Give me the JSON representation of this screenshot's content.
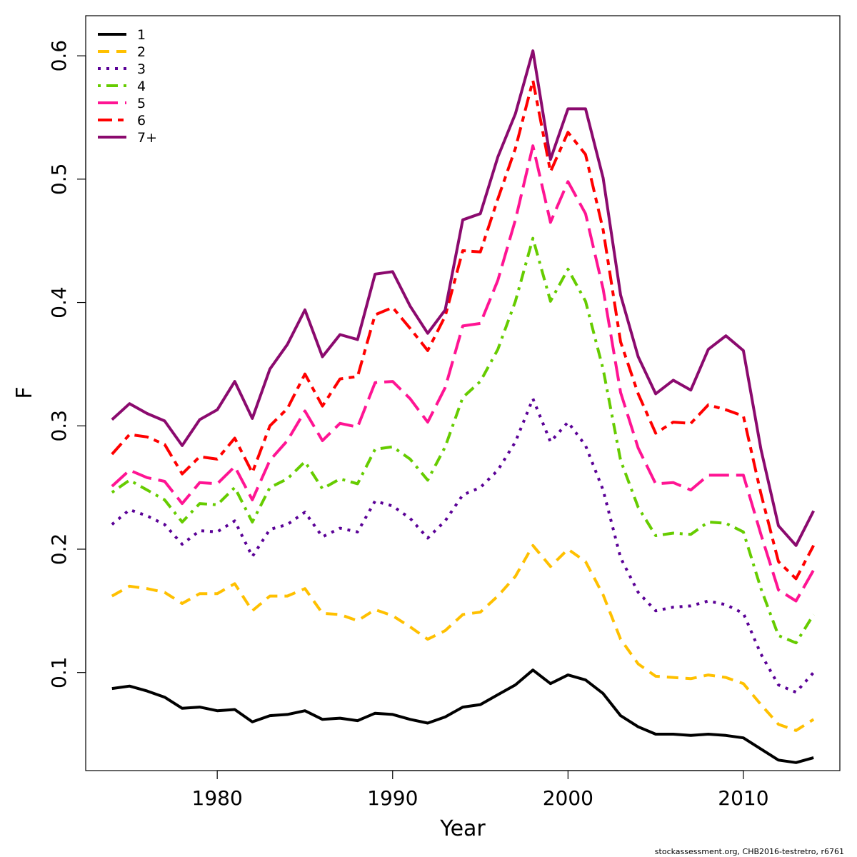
{
  "chart_data": {
    "type": "line",
    "xlabel": "Year",
    "ylabel": "F",
    "xlim": [
      1972.5,
      2015.5
    ],
    "ylim": [
      0.0205,
      0.6325
    ],
    "xticks": [
      1980,
      1990,
      2000,
      2010
    ],
    "yticks": [
      0.1,
      0.2,
      0.3,
      0.4,
      0.5,
      0.6
    ],
    "grid": false,
    "legend_position": "top-left",
    "x": [
      1974,
      1975,
      1976,
      1977,
      1978,
      1979,
      1980,
      1981,
      1982,
      1983,
      1984,
      1985,
      1986,
      1987,
      1988,
      1989,
      1990,
      1991,
      1992,
      1993,
      1994,
      1995,
      1996,
      1997,
      1998,
      1999,
      2000,
      2001,
      2002,
      2003,
      2004,
      2005,
      2006,
      2007,
      2008,
      2009,
      2010,
      2011,
      2012,
      2013,
      2014
    ],
    "series": [
      {
        "name": "1",
        "color": "#000000",
        "dash": "solid",
        "values": [
          0.087,
          0.089,
          0.085,
          0.08,
          0.071,
          0.072,
          0.069,
          0.07,
          0.06,
          0.065,
          0.066,
          0.069,
          0.062,
          0.063,
          0.061,
          0.067,
          0.066,
          0.062,
          0.059,
          0.064,
          0.072,
          0.074,
          0.082,
          0.09,
          0.102,
          0.091,
          0.098,
          0.094,
          0.083,
          0.065,
          0.056,
          0.05,
          0.05,
          0.049,
          0.05,
          0.049,
          0.047,
          0.038,
          0.029,
          0.027,
          0.031
        ]
      },
      {
        "name": "2",
        "color": "#FFC000",
        "dash": "dashed",
        "values": [
          0.162,
          0.17,
          0.168,
          0.165,
          0.156,
          0.164,
          0.164,
          0.172,
          0.15,
          0.162,
          0.162,
          0.168,
          0.148,
          0.147,
          0.142,
          0.151,
          0.146,
          0.137,
          0.127,
          0.134,
          0.147,
          0.149,
          0.162,
          0.178,
          0.203,
          0.186,
          0.2,
          0.19,
          0.163,
          0.127,
          0.107,
          0.097,
          0.096,
          0.095,
          0.098,
          0.096,
          0.091,
          0.074,
          0.058,
          0.053,
          0.062
        ]
      },
      {
        "name": "3",
        "color": "#5A0096",
        "dash": "dotted",
        "values": [
          0.22,
          0.232,
          0.227,
          0.22,
          0.204,
          0.215,
          0.214,
          0.223,
          0.194,
          0.216,
          0.22,
          0.23,
          0.21,
          0.217,
          0.214,
          0.239,
          0.235,
          0.225,
          0.209,
          0.223,
          0.244,
          0.25,
          0.264,
          0.287,
          0.322,
          0.287,
          0.303,
          0.284,
          0.248,
          0.193,
          0.165,
          0.15,
          0.153,
          0.154,
          0.158,
          0.155,
          0.148,
          0.115,
          0.09,
          0.084,
          0.1
        ]
      },
      {
        "name": "4",
        "color": "#66CC00",
        "dash": "dotdash",
        "values": [
          0.246,
          0.256,
          0.248,
          0.24,
          0.222,
          0.237,
          0.236,
          0.25,
          0.222,
          0.25,
          0.257,
          0.271,
          0.249,
          0.257,
          0.253,
          0.281,
          0.283,
          0.273,
          0.256,
          0.283,
          0.323,
          0.336,
          0.362,
          0.401,
          0.452,
          0.401,
          0.427,
          0.401,
          0.346,
          0.272,
          0.234,
          0.211,
          0.213,
          0.212,
          0.222,
          0.221,
          0.214,
          0.168,
          0.13,
          0.124,
          0.147
        ]
      },
      {
        "name": "5",
        "color": "#FF1493",
        "dash": "longdash",
        "values": [
          0.251,
          0.264,
          0.258,
          0.255,
          0.237,
          0.254,
          0.253,
          0.267,
          0.24,
          0.272,
          0.288,
          0.312,
          0.288,
          0.302,
          0.299,
          0.335,
          0.336,
          0.322,
          0.303,
          0.331,
          0.381,
          0.383,
          0.418,
          0.467,
          0.527,
          0.465,
          0.498,
          0.472,
          0.411,
          0.327,
          0.282,
          0.253,
          0.254,
          0.248,
          0.26,
          0.26,
          0.26,
          0.212,
          0.167,
          0.158,
          0.183
        ]
      },
      {
        "name": "6",
        "color": "#FF0000",
        "dash": "twodash",
        "values": [
          0.277,
          0.293,
          0.291,
          0.285,
          0.261,
          0.275,
          0.273,
          0.29,
          0.262,
          0.3,
          0.314,
          0.342,
          0.316,
          0.338,
          0.34,
          0.39,
          0.396,
          0.379,
          0.361,
          0.389,
          0.442,
          0.441,
          0.484,
          0.525,
          0.58,
          0.506,
          0.538,
          0.52,
          0.459,
          0.368,
          0.326,
          0.294,
          0.303,
          0.302,
          0.317,
          0.313,
          0.308,
          0.245,
          0.19,
          0.176,
          0.203
        ]
      },
      {
        "name": "7+",
        "color": "#8B0A6E",
        "dash": "solid",
        "values": [
          0.305,
          0.318,
          0.31,
          0.304,
          0.284,
          0.305,
          0.313,
          0.336,
          0.306,
          0.346,
          0.366,
          0.394,
          0.356,
          0.374,
          0.37,
          0.423,
          0.425,
          0.397,
          0.375,
          0.394,
          0.467,
          0.472,
          0.518,
          0.553,
          0.604,
          0.516,
          0.557,
          0.557,
          0.501,
          0.406,
          0.356,
          0.326,
          0.337,
          0.329,
          0.362,
          0.373,
          0.361,
          0.281,
          0.219,
          0.203,
          0.231
        ]
      }
    ]
  },
  "footer": {
    "note": "stockassessment.org, CHB2016-testretro, r6761"
  }
}
